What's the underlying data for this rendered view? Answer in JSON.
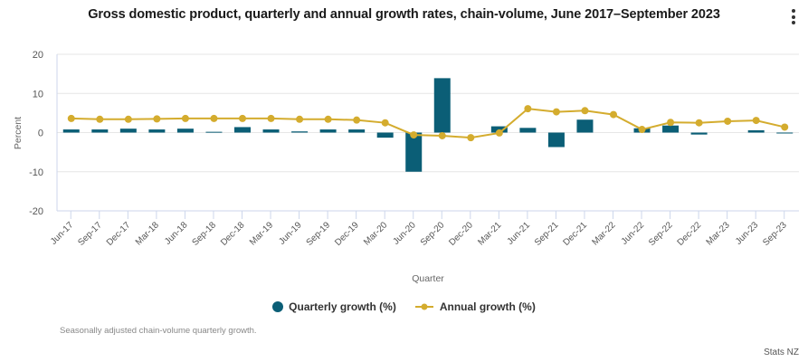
{
  "header": {
    "menu_icon": "vertical-ellipsis-icon"
  },
  "colors": {
    "quarterly": "#0b5e76",
    "annual": "#d4ac2e",
    "grid": "#e6e6e6",
    "axis": "#ccd6eb"
  },
  "chart_data": {
    "type": "bar",
    "title": "Gross domestic product, quarterly and annual growth rates, chain-volume, June 2017–September 2023",
    "xlabel": "Quarter",
    "ylabel": "Percent",
    "ylim": [
      -20,
      20
    ],
    "yticks": [
      "20",
      "10",
      "0",
      "-10",
      "-20"
    ],
    "ytick_values": [
      20,
      10,
      0,
      -10,
      -20
    ],
    "grid": true,
    "legend_position": "bottom",
    "categories": [
      "Jun-17",
      "Sep-17",
      "Dec-17",
      "Mar-18",
      "Jun-18",
      "Sep-18",
      "Dec-18",
      "Mar-19",
      "Jun-19",
      "Sep-19",
      "Dec-19",
      "Mar-20",
      "Jun-20",
      "Sep-20",
      "Dec-20",
      "Mar-21",
      "Jun-21",
      "Sep-21",
      "Dec-21",
      "Mar-22",
      "Jun-22",
      "Sep-22",
      "Dec-22",
      "Mar-23",
      "Jun-23",
      "Sep-23"
    ],
    "series": [
      {
        "name": "Quarterly growth (%)",
        "type": "bar",
        "values": [
          0.8,
          0.8,
          1.0,
          0.8,
          1.0,
          0.2,
          1.4,
          0.8,
          0.3,
          0.8,
          0.8,
          -1.3,
          -10.0,
          13.9,
          0.0,
          1.6,
          1.2,
          -3.7,
          3.3,
          0.0,
          1.1,
          1.8,
          -0.5,
          0.0,
          0.6,
          -0.2
        ]
      },
      {
        "name": "Annual growth (%)",
        "type": "line",
        "values": [
          3.6,
          3.4,
          3.4,
          3.5,
          3.6,
          3.6,
          3.6,
          3.6,
          3.4,
          3.4,
          3.2,
          2.5,
          -0.6,
          -0.8,
          -1.3,
          -0.1,
          6.1,
          5.3,
          5.6,
          4.6,
          0.8,
          2.6,
          2.5,
          2.9,
          3.1,
          1.4
        ]
      }
    ]
  },
  "footer": {
    "note": "Seasonally adjusted chain-volume quarterly growth.",
    "credit": "Stats NZ"
  }
}
